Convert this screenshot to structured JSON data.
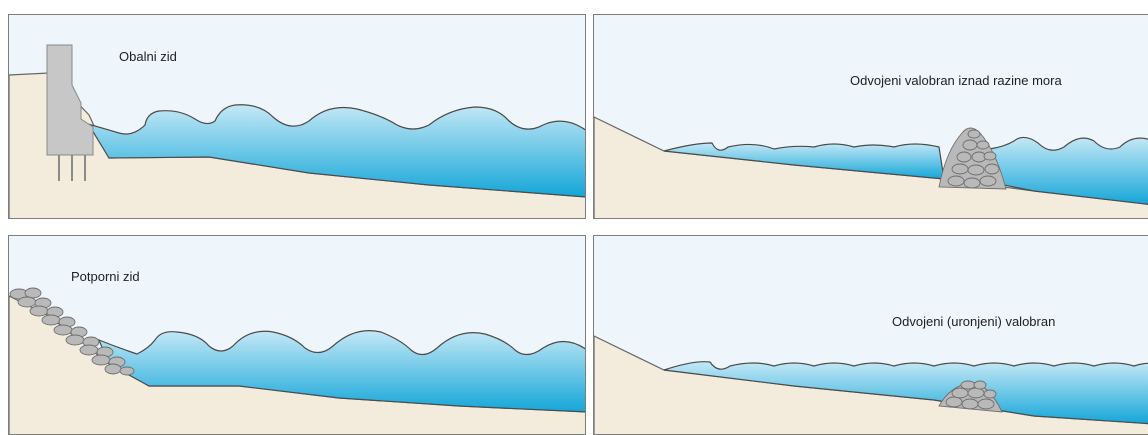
{
  "panels": {
    "seawall": {
      "label": "Obalni zid"
    },
    "emerged": {
      "label": "Odvojeni valobran iznad razine mora"
    },
    "revetment": {
      "label": "Potporni zid"
    },
    "submerged": {
      "label": "Odvojeni (uronjeni) valobran"
    }
  },
  "colors": {
    "sky": "#eef5fb",
    "sand": "#f3ecdd",
    "water_light": "#c4e8f6",
    "water_deep": "#14a6d8",
    "wall": "#c7c7c7",
    "stone": "#b9b9b9",
    "outline": "#555555"
  }
}
